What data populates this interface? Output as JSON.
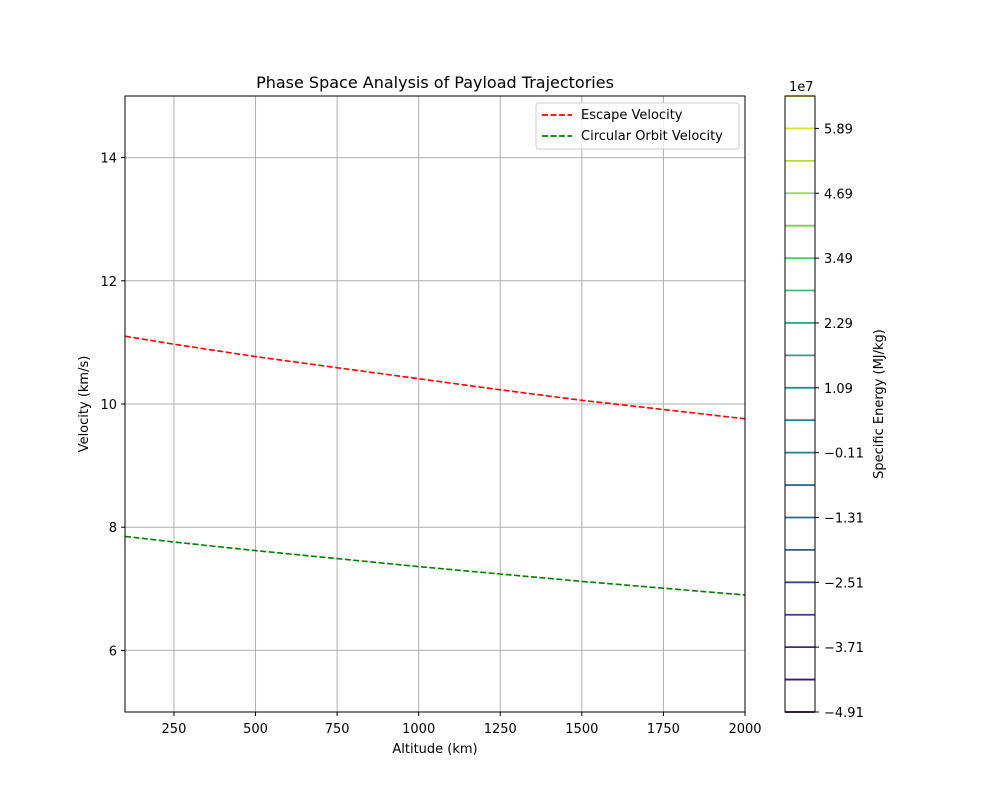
{
  "chart_data": {
    "type": "line",
    "title": "Phase Space Analysis of Payload Trajectories",
    "xlabel": "Altitude (km)",
    "ylabel": "Velocity (km/s)",
    "xlim": [
      100,
      2000
    ],
    "ylim": [
      5,
      15
    ],
    "xticks": [
      250,
      500,
      750,
      1000,
      1250,
      1500,
      1750,
      2000
    ],
    "yticks": [
      6,
      8,
      10,
      12,
      14
    ],
    "grid": true,
    "legend_position": "top-right",
    "series": [
      {
        "name": "Escape Velocity",
        "color": "#ff0000",
        "line_style": "dashed",
        "x": [
          100,
          250,
          500,
          750,
          1000,
          1250,
          1500,
          1750,
          2000
        ],
        "values": [
          11.1,
          10.97,
          10.77,
          10.59,
          10.41,
          10.23,
          10.06,
          9.91,
          9.76
        ]
      },
      {
        "name": "Circular Orbit Velocity",
        "color": "#008000",
        "line_style": "dashed",
        "x": [
          100,
          250,
          500,
          750,
          1000,
          1250,
          1500,
          1750,
          2000
        ],
        "values": [
          7.85,
          7.76,
          7.62,
          7.49,
          7.36,
          7.24,
          7.12,
          7.01,
          6.9
        ]
      }
    ],
    "colorbar": {
      "label": "Specific Energy (MJ/kg)",
      "multiplier": "1e7",
      "colormap": "viridis",
      "range": [
        -4.91,
        6.49
      ],
      "tick_values": [
        -4.91,
        -3.71,
        -2.51,
        -1.31,
        -0.11,
        1.09,
        2.29,
        3.49,
        4.69,
        5.89
      ],
      "tick_labels": [
        "−4.91",
        "−3.71",
        "−2.51",
        "−1.31",
        "−0.11",
        "1.09",
        "2.29",
        "3.49",
        "4.69",
        "5.89"
      ],
      "level_values": [
        -4.91,
        -4.31,
        -3.71,
        -3.11,
        -2.51,
        -1.91,
        -1.31,
        -0.71,
        -0.11,
        0.49,
        1.09,
        1.69,
        2.29,
        2.89,
        3.49,
        4.09,
        4.69,
        5.29,
        5.89,
        6.49
      ],
      "level_colors": [
        "#440154",
        "#481568",
        "#482677",
        "#453781",
        "#3f4788",
        "#39558c",
        "#32648e",
        "#2d718e",
        "#287d8e",
        "#238a8d",
        "#1f968b",
        "#20a386",
        "#29af7f",
        "#3dbc74",
        "#56c667",
        "#75d054",
        "#95d840",
        "#bade28",
        "#dde318",
        "#fde725"
      ]
    }
  }
}
